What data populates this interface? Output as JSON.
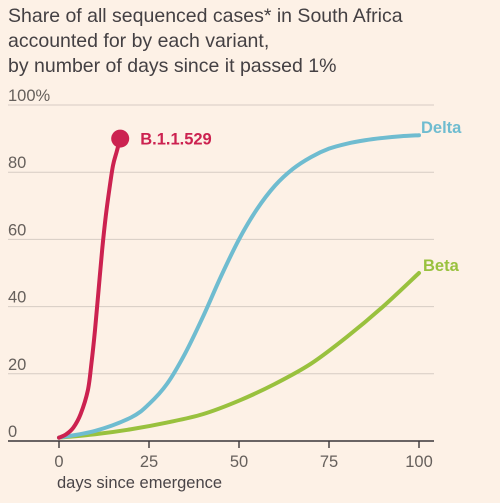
{
  "chart_data": {
    "type": "line",
    "title_lines": [
      "Share of all sequenced cases* in South Africa",
      "accounted for by each variant,",
      "by number of days since it passed 1%"
    ],
    "xlabel": "days since emergence",
    "ylabel": "",
    "xlim": [
      0,
      100
    ],
    "ylim": [
      0,
      100
    ],
    "x_ticks": [
      0,
      25,
      50,
      75,
      100
    ],
    "y_ticks": [
      0,
      20,
      40,
      60,
      80,
      100
    ],
    "y_tick_labels": [
      "0",
      "20",
      "40",
      "60",
      "80",
      "100%"
    ],
    "grid": "horizontal",
    "series": [
      {
        "name": "B.1.1.529",
        "color": "#cc2250",
        "x": [
          0,
          2,
          4,
          6,
          8,
          9,
          10,
          11,
          12,
          13,
          14,
          15,
          16,
          17
        ],
        "y": [
          1,
          2,
          4,
          8,
          15,
          23,
          33,
          45,
          57,
          67,
          75,
          82,
          86,
          90
        ],
        "end_marker": true
      },
      {
        "name": "Delta",
        "color": "#6fbcd0",
        "x": [
          0,
          10,
          20,
          25,
          30,
          35,
          40,
          45,
          50,
          55,
          60,
          65,
          70,
          75,
          80,
          85,
          90,
          95,
          100
        ],
        "y": [
          1,
          3,
          7,
          11,
          17,
          26,
          37,
          49,
          60,
          69,
          76,
          81,
          84.5,
          87,
          88.5,
          89.5,
          90.2,
          90.7,
          91
        ]
      },
      {
        "name": "Beta",
        "color": "#99c13e",
        "x": [
          0,
          10,
          20,
          30,
          40,
          50,
          60,
          70,
          80,
          90,
          100
        ],
        "y": [
          1,
          2,
          3.5,
          5.5,
          8,
          12,
          17,
          23,
          31,
          40,
          50
        ]
      }
    ]
  }
}
